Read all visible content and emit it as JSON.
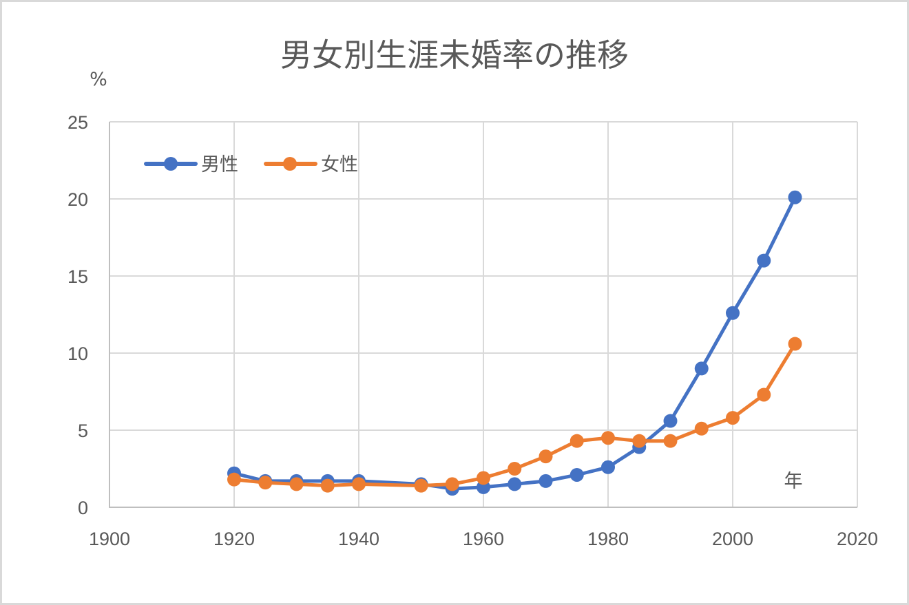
{
  "chart": {
    "title": "男女別生涯未婚率の推移",
    "y_unit_label": "%",
    "x_unit_label": "年",
    "legend": [
      {
        "label": "男性",
        "color": "#4472c4"
      },
      {
        "label": "女性",
        "color": "#ed7d31"
      }
    ],
    "x_ticks": [
      "1900",
      "1920",
      "1940",
      "1960",
      "1980",
      "2000",
      "2020"
    ],
    "y_ticks": [
      "0",
      "5",
      "10",
      "15",
      "20",
      "25"
    ]
  },
  "chart_data": {
    "type": "line",
    "title": "男女別生涯未婚率の推移",
    "xlabel": "年",
    "ylabel": "%",
    "xlim": [
      1900,
      2020
    ],
    "ylim": [
      0,
      25
    ],
    "x_ticks": [
      1900,
      1920,
      1940,
      1960,
      1980,
      2000,
      2020
    ],
    "y_ticks": [
      0,
      5,
      10,
      15,
      20,
      25
    ],
    "grid": {
      "horizontal": true,
      "vertical": true
    },
    "legend_position": "top-left inside plot",
    "x": [
      1920,
      1925,
      1930,
      1935,
      1940,
      1950,
      1955,
      1960,
      1965,
      1970,
      1975,
      1980,
      1985,
      1990,
      1995,
      2000,
      2005,
      2010
    ],
    "series": [
      {
        "name": "男性",
        "color": "#4472c4",
        "marker": "circle",
        "values": [
          2.2,
          1.7,
          1.7,
          1.7,
          1.7,
          1.5,
          1.2,
          1.3,
          1.5,
          1.7,
          2.1,
          2.6,
          3.9,
          5.6,
          9.0,
          12.6,
          16.0,
          20.1
        ]
      },
      {
        "name": "女性",
        "color": "#ed7d31",
        "marker": "circle",
        "values": [
          1.8,
          1.6,
          1.5,
          1.4,
          1.5,
          1.4,
          1.5,
          1.9,
          2.5,
          3.3,
          4.3,
          4.5,
          4.3,
          4.3,
          5.1,
          5.8,
          7.3,
          10.6
        ]
      }
    ]
  }
}
